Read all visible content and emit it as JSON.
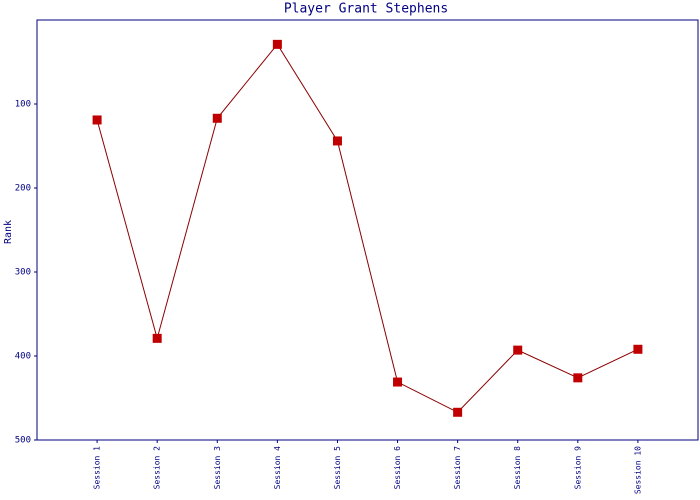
{
  "chart_data": {
    "type": "line",
    "title": "Player Grant Stephens",
    "y_label": "Rank",
    "categories": [
      "Session 1",
      "Session 2",
      "Session 3",
      "Session 4",
      "Session 5",
      "Session 6",
      "Session 7",
      "Session 8",
      "Session 9",
      "Session 10"
    ],
    "series": [
      {
        "name": "Rank",
        "line_color": "#8b0000",
        "marker_color": "#c00000",
        "values": [
          119,
          379,
          117,
          29,
          144,
          431,
          467,
          393,
          426,
          392
        ]
      }
    ],
    "ylim": [
      500,
      0
    ],
    "yticks": [
      100,
      200,
      300,
      400,
      500
    ],
    "grid": false
  }
}
